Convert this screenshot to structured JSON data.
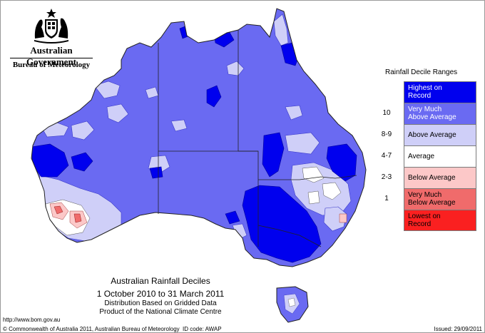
{
  "header": {
    "government": "Australian Government",
    "bureau": "Bureau of Meteorology",
    "crest_icon": "coat-of-arms"
  },
  "legend": {
    "title": "Rainfall Decile Ranges",
    "items": [
      {
        "range": "",
        "label_lines": [
          "Highest on",
          "Record"
        ],
        "color": "#0000ee"
      },
      {
        "range": "10",
        "label_lines": [
          "Very Much",
          "Above Average"
        ],
        "color": "#6a6af2"
      },
      {
        "range": "8-9",
        "label_lines": [
          "Above Average"
        ],
        "color": "#cfcff8"
      },
      {
        "range": "4-7",
        "label_lines": [
          "Average"
        ],
        "color": "#ffffff"
      },
      {
        "range": "2-3",
        "label_lines": [
          "Below Average"
        ],
        "color": "#fcc8c8"
      },
      {
        "range": "1",
        "label_lines": [
          "Very Much",
          "Below Average"
        ],
        "color": "#f06b6b"
      },
      {
        "range": "",
        "label_lines": [
          "Lowest on",
          "Record"
        ],
        "color": "#fa2020"
      }
    ]
  },
  "titles": {
    "main": "Australian Rainfall Deciles",
    "period": "1 October 2010 to 31 March 2011",
    "line3": "Distribution Based on Gridded Data",
    "line4": "Product of the National Climate Centre"
  },
  "footer": {
    "url": "http://www.bom.gov.au",
    "copyright": "© Commonwealth of Australia 2011, Australian Bureau of Meteorology",
    "id_code": "ID code: AWAP",
    "issued": "Issued: 29/09/2011"
  },
  "colors": {
    "highest_on_record": "#0000ee",
    "very_much_above": "#6a6af2",
    "above_average": "#cfcff8",
    "average": "#ffffff",
    "below_average": "#fcc8c8",
    "very_much_below": "#f06b6b",
    "lowest_on_record": "#fa2020",
    "boundary": "#222222"
  }
}
